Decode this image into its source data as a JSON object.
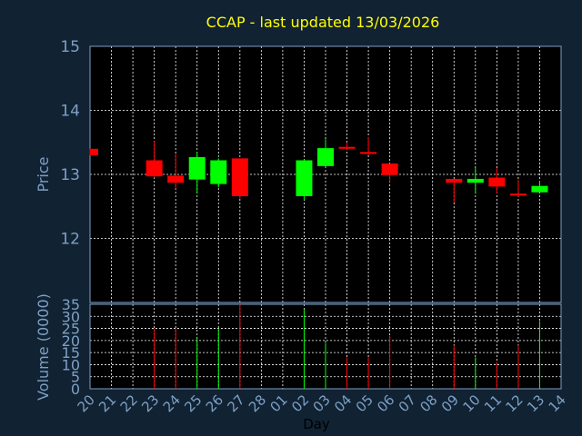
{
  "chart_data": {
    "type": "candlestick",
    "title": "CCAP - last updated 13/03/2026",
    "xlabel": "Day",
    "price_label": "Price",
    "volume_label": "Volume (0000)",
    "x_ticks": [
      "20",
      "21",
      "22",
      "23",
      "24",
      "25",
      "26",
      "27",
      "28",
      "01",
      "02",
      "03",
      "04",
      "05",
      "06",
      "07",
      "08",
      "09",
      "10",
      "11",
      "12",
      "13",
      "14"
    ],
    "price_ticks": [
      15,
      14,
      13,
      12
    ],
    "volume_ticks": [
      35,
      30,
      25,
      20,
      15,
      10,
      5,
      0
    ],
    "price_ylim": [
      11.0,
      15.0
    ],
    "volume_ylim": [
      0,
      35
    ],
    "grid": true,
    "colors": {
      "background": "#112233",
      "plot": "#000000",
      "up": "#00ff00",
      "down": "#ff0000",
      "grid": "#ffffff",
      "title": "#ffff00",
      "axis_text": "#7da0c4"
    },
    "candles": [
      {
        "day": "20",
        "o": 13.4,
        "h": 13.4,
        "l": 13.3,
        "c": 13.3,
        "vol": 0
      },
      {
        "day": "23",
        "o": 13.22,
        "h": 13.52,
        "l": 12.95,
        "c": 12.97,
        "vol": 25
      },
      {
        "day": "24",
        "o": 12.98,
        "h": 13.32,
        "l": 12.78,
        "c": 12.87,
        "vol": 25
      },
      {
        "day": "25",
        "o": 12.92,
        "h": 13.35,
        "l": 12.7,
        "c": 13.27,
        "vol": 21
      },
      {
        "day": "26",
        "o": 12.85,
        "h": 13.25,
        "l": 12.8,
        "c": 13.22,
        "vol": 25
      },
      {
        "day": "27",
        "o": 13.25,
        "h": 13.25,
        "l": 12.62,
        "c": 12.66,
        "vol": 35
      },
      {
        "day": "02",
        "o": 12.66,
        "h": 13.23,
        "l": 12.6,
        "c": 13.22,
        "vol": 33
      },
      {
        "day": "03",
        "o": 13.13,
        "h": 13.55,
        "l": 13.13,
        "c": 13.41,
        "vol": 19
      },
      {
        "day": "04",
        "o": 13.43,
        "h": 13.5,
        "l": 13.38,
        "c": 13.4,
        "vol": 13
      },
      {
        "day": "05",
        "o": 13.35,
        "h": 13.58,
        "l": 13.3,
        "c": 13.32,
        "vol": 13
      },
      {
        "day": "06",
        "o": 13.17,
        "h": 13.17,
        "l": 12.88,
        "c": 12.99,
        "vol": 22
      },
      {
        "day": "09",
        "o": 12.93,
        "h": 12.93,
        "l": 12.56,
        "c": 12.87,
        "vol": 18
      },
      {
        "day": "10",
        "o": 12.87,
        "h": 13.1,
        "l": 12.7,
        "c": 12.93,
        "vol": 13
      },
      {
        "day": "11",
        "o": 12.95,
        "h": 13.1,
        "l": 12.7,
        "c": 12.81,
        "vol": 11
      },
      {
        "day": "12",
        "o": 12.7,
        "h": 12.92,
        "l": 12.65,
        "c": 12.67,
        "vol": 18
      },
      {
        "day": "13",
        "o": 12.72,
        "h": 12.9,
        "l": 12.72,
        "c": 12.82,
        "vol": 28
      }
    ]
  }
}
